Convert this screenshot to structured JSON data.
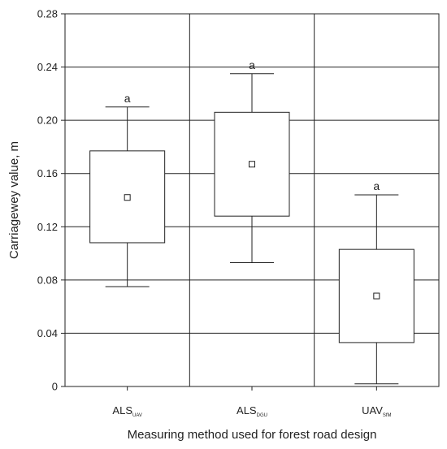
{
  "chart_data": {
    "type": "box",
    "ylabel": "Carriagewey value, m",
    "xlabel": "Measuring method used for forest road design",
    "ylim": [
      0,
      0.28
    ],
    "yticks": [
      0,
      0.04,
      0.08,
      0.12,
      0.16,
      0.2,
      0.24,
      0.28
    ],
    "ytick_labels": [
      "0",
      "0.04",
      "0.08",
      "0.12",
      "0.16",
      "0.20",
      "0.24",
      "0.28"
    ],
    "grid": true,
    "categories": [
      {
        "base": "ALS",
        "sub": "UAV"
      },
      {
        "base": "ALS",
        "sub": "DGU"
      },
      {
        "base": "UAV",
        "sub": "SfM"
      }
    ],
    "boxes": [
      {
        "whisker_low": 0.075,
        "q1": 0.108,
        "mean": 0.142,
        "q3": 0.177,
        "whisker_high": 0.21,
        "letter": "a"
      },
      {
        "whisker_low": 0.093,
        "q1": 0.128,
        "mean": 0.167,
        "q3": 0.206,
        "whisker_high": 0.235,
        "letter": "a"
      },
      {
        "whisker_low": 0.002,
        "q1": 0.033,
        "mean": 0.068,
        "q3": 0.103,
        "whisker_high": 0.144,
        "letter": "a"
      }
    ]
  }
}
